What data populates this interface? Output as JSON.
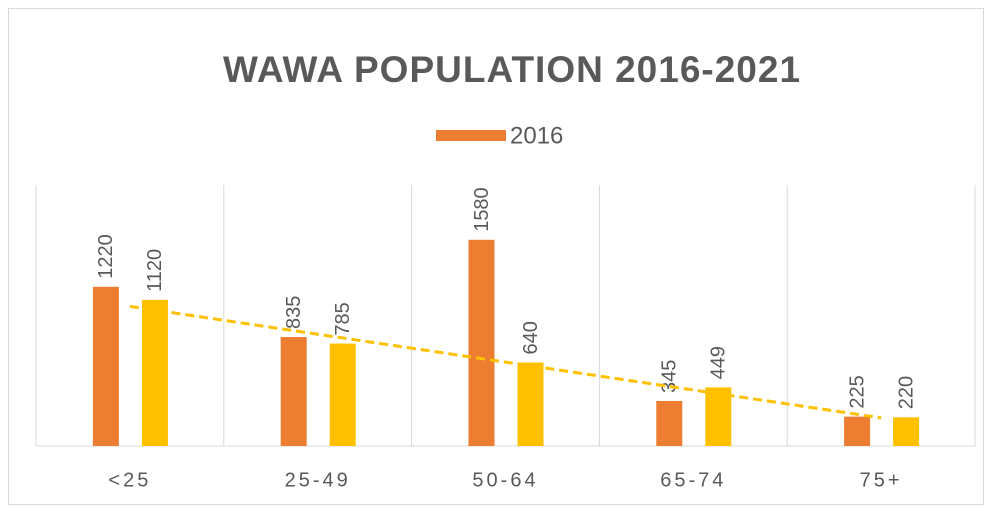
{
  "chart_data": {
    "type": "bar",
    "title": "WAWA POPULATION 2016-2021",
    "categories": [
      "<25",
      "25-49",
      "50-64",
      "65-74",
      "75+"
    ],
    "series": [
      {
        "name": "2016",
        "color": "#ed7d31",
        "values": [
          1220,
          835,
          1580,
          345,
          225
        ]
      },
      {
        "color": "#ffc000",
        "values": [
          1120,
          785,
          640,
          449,
          220
        ],
        "trendline": true
      }
    ],
    "ylim": [
      0,
      2000
    ],
    "grid": "vertical",
    "legend": "top"
  }
}
